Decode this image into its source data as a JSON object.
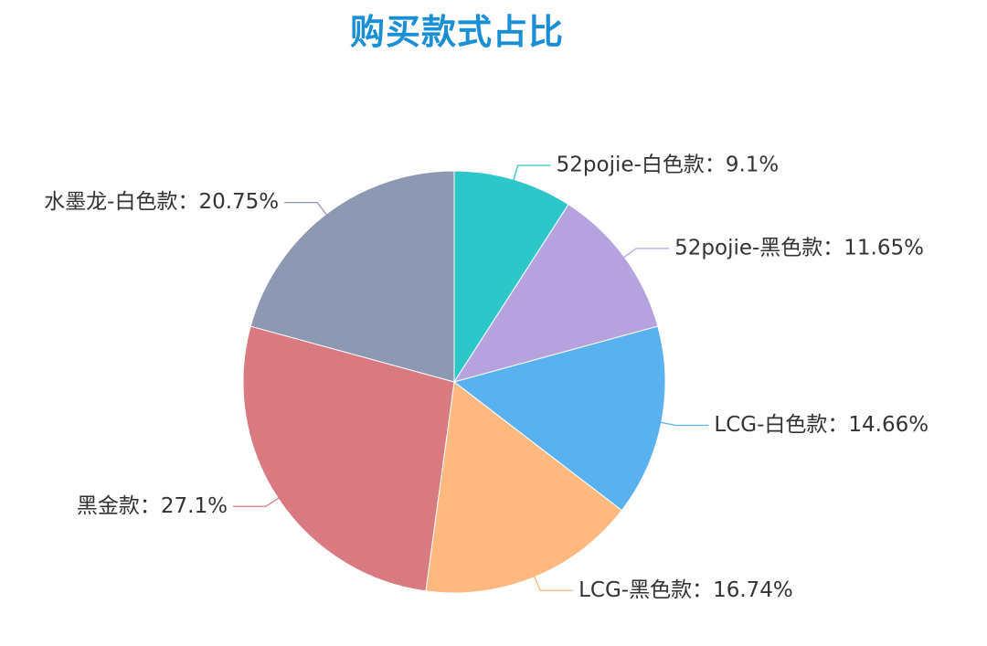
{
  "chart_data": {
    "type": "pie",
    "title": "购买款式占比",
    "title_color": "#1a8fd6",
    "label_separator": "：",
    "slices": [
      {
        "name": "52pojie-白色款",
        "value": 9.1,
        "label": "52pojie-白色款：9.1%",
        "color": "#2ec7c9"
      },
      {
        "name": "52pojie-黑色款",
        "value": 11.65,
        "label": "52pojie-黑色款：11.65%",
        "color": "#b6a2de"
      },
      {
        "name": "LCG-白色款",
        "value": 14.66,
        "label": "LCG-白色款：14.66%",
        "color": "#5ab1ef"
      },
      {
        "name": "LCG-黑色款",
        "value": 16.74,
        "label": "LCG-黑色款：16.74%",
        "color": "#ffb980"
      },
      {
        "name": "黑金款",
        "value": 27.1,
        "label": "黑金款：27.1%",
        "color": "#d87a80"
      },
      {
        "name": "水墨龙-白色款",
        "value": 20.75,
        "label": "水墨龙-白色款：20.75%",
        "color": "#8d98b3"
      }
    ],
    "start_angle": "12 o'clock",
    "direction": "clockwise",
    "legend": "none"
  }
}
